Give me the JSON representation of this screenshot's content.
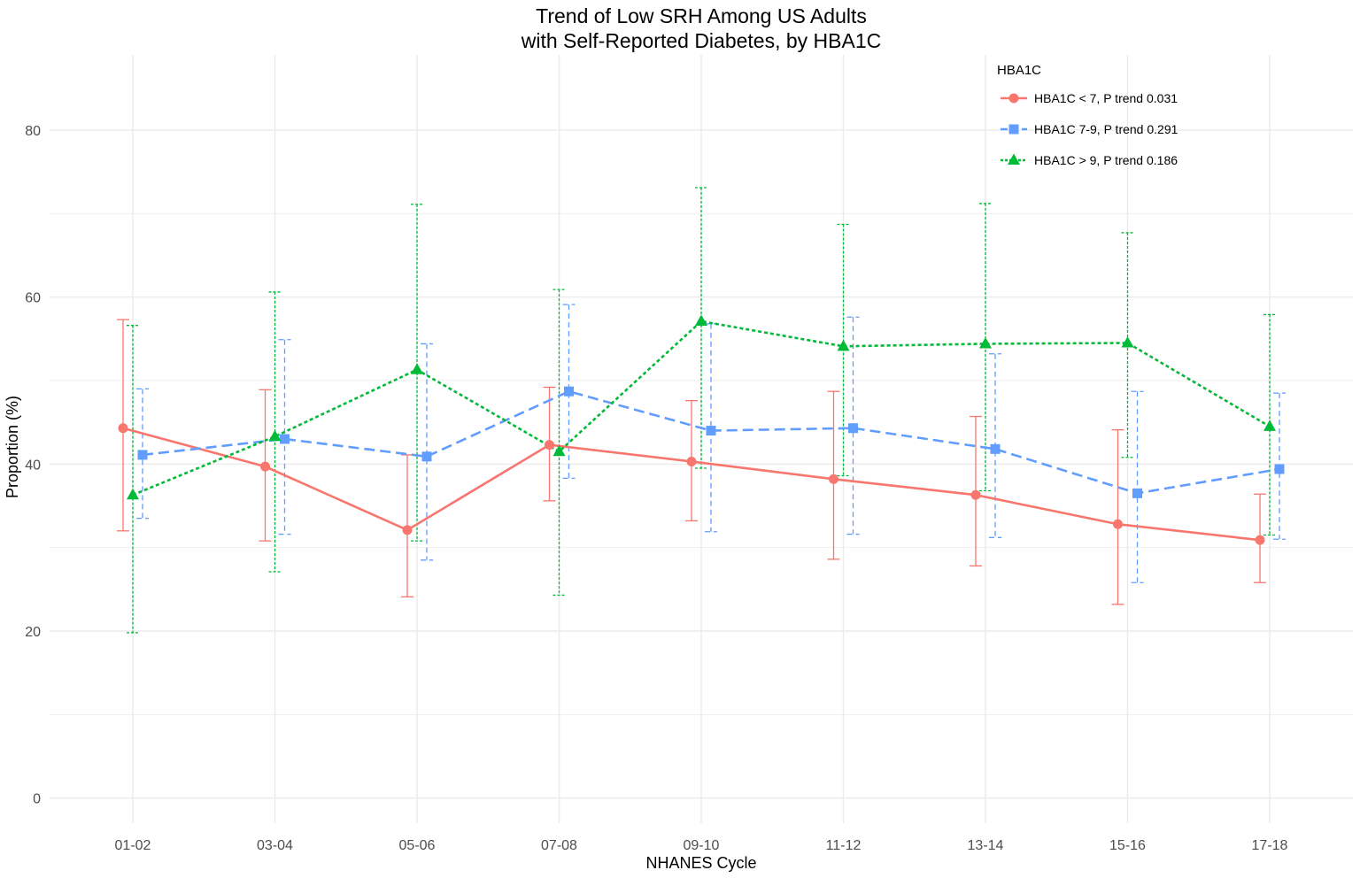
{
  "chart_data": {
    "type": "line",
    "title": "Trend of Low SRH Among US Adults",
    "subtitle": "with Self-Reported Diabetes, by HBA1C",
    "xlabel": "NHANES Cycle",
    "ylabel": "Proportion (%)",
    "categories": [
      "01-02",
      "03-04",
      "05-06",
      "07-08",
      "09-10",
      "11-12",
      "13-14",
      "15-16",
      "17-18"
    ],
    "ylim": [
      -3,
      89
    ],
    "yticks": [
      0,
      20,
      40,
      60,
      80
    ],
    "grid": true,
    "legend": {
      "title": "HBA1C",
      "position": "top-right"
    },
    "series": [
      {
        "name": "HBA1C < 7, P trend 0.031",
        "color": "#F8766D",
        "marker": "circle",
        "line_style": "solid",
        "values": [
          44.3,
          39.7,
          32.1,
          42.3,
          40.3,
          38.2,
          36.3,
          32.8,
          30.9
        ],
        "lower": [
          32.0,
          30.8,
          24.1,
          35.6,
          33.2,
          28.6,
          27.8,
          23.2,
          25.8
        ],
        "upper": [
          57.3,
          48.9,
          41.1,
          49.2,
          47.6,
          48.7,
          45.7,
          44.1,
          36.4
        ]
      },
      {
        "name": "HBA1C 7-9, P trend 0.291",
        "color": "#619CFF",
        "marker": "square",
        "line_style": "dashed",
        "values": [
          41.1,
          43.0,
          40.9,
          48.7,
          44.0,
          44.3,
          41.8,
          36.5,
          39.4
        ],
        "lower": [
          33.5,
          31.6,
          28.5,
          38.3,
          31.9,
          31.6,
          31.2,
          25.8,
          31.0
        ],
        "upper": [
          49.0,
          54.9,
          54.4,
          59.1,
          56.8,
          57.6,
          53.2,
          48.7,
          48.5
        ]
      },
      {
        "name": "HBA1C > 9, P trend 0.186",
        "color": "#00BA38",
        "marker": "triangle",
        "line_style": "dotted",
        "values": [
          36.3,
          43.3,
          51.3,
          41.5,
          57.1,
          54.1,
          54.4,
          54.5,
          44.5
        ],
        "lower": [
          19.8,
          27.1,
          30.8,
          24.3,
          39.5,
          38.6,
          36.8,
          40.8,
          31.5
        ],
        "upper": [
          56.6,
          60.6,
          71.1,
          60.9,
          73.1,
          68.7,
          71.2,
          67.7,
          57.9
        ]
      }
    ]
  }
}
